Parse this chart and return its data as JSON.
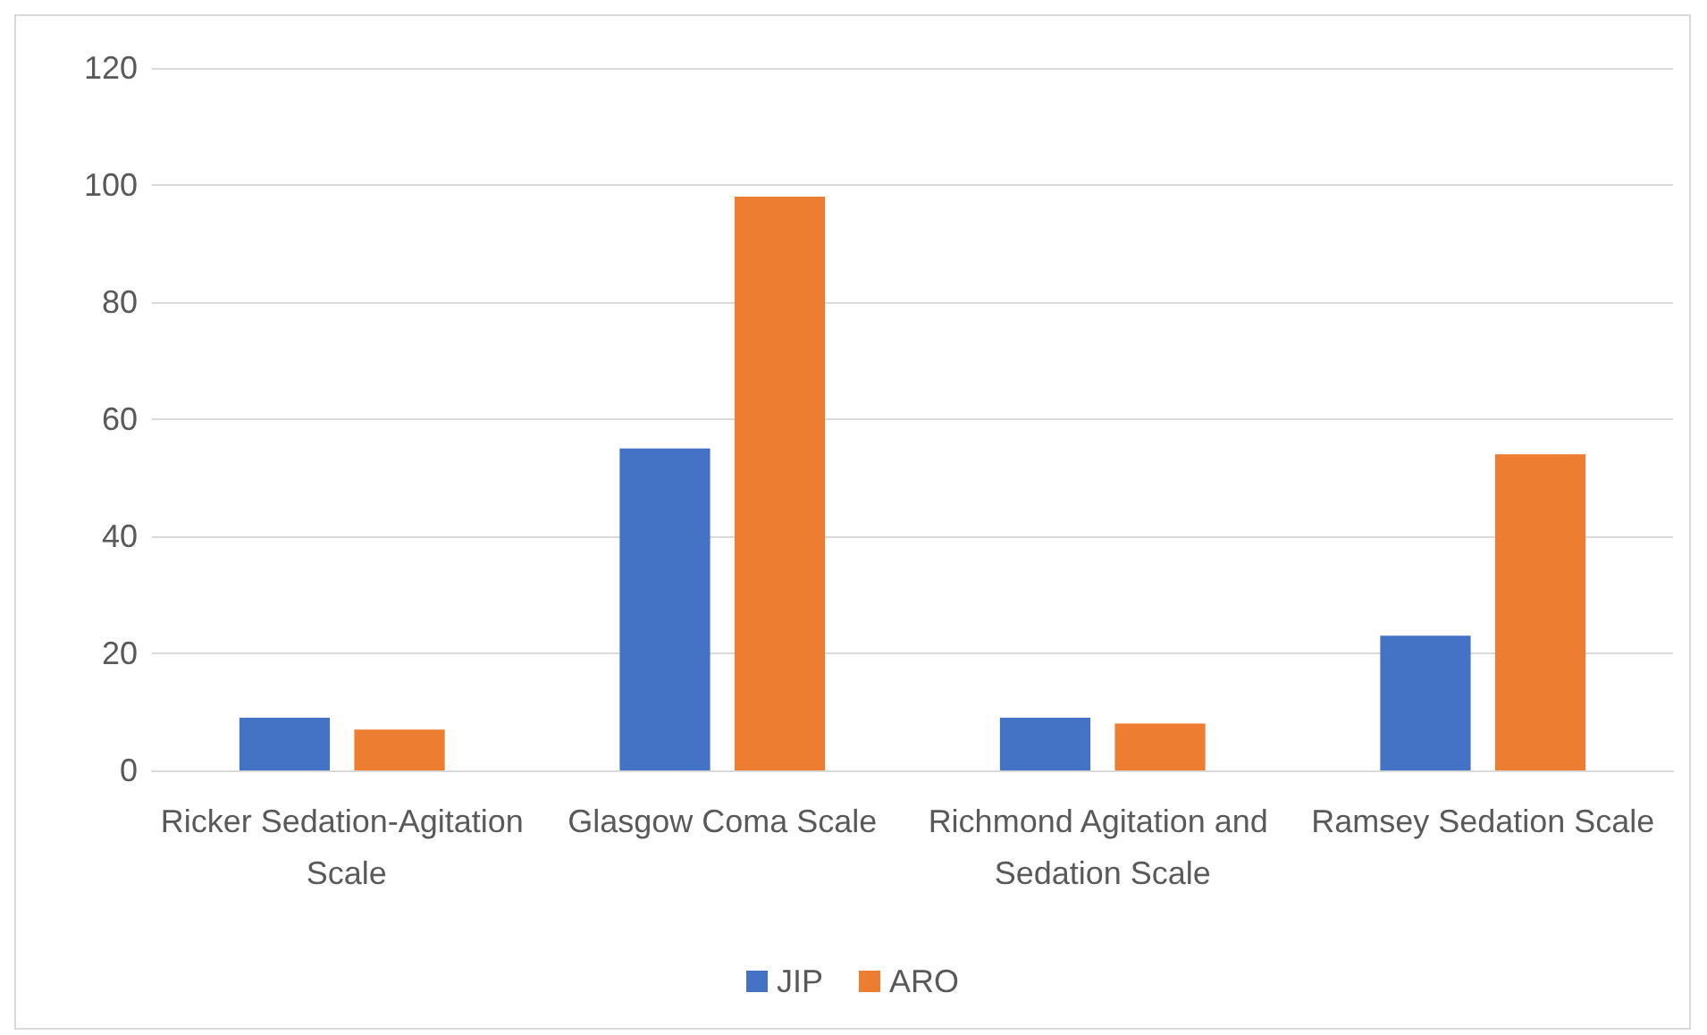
{
  "chart_data": {
    "type": "bar",
    "categories": [
      "Ricker Sedation-Agitation Scale",
      "Glasgow Coma Scale",
      "Richmond Agitation and Sedation Scale",
      "Ramsey Sedation Scale"
    ],
    "series": [
      {
        "name": "JIP",
        "color": "#4472c4",
        "values": [
          9,
          55,
          9,
          23
        ]
      },
      {
        "name": "ARO",
        "color": "#ed7d31",
        "values": [
          7,
          98,
          8,
          54
        ]
      }
    ],
    "ylim": [
      0,
      120
    ],
    "yticks": [
      0,
      20,
      40,
      60,
      80,
      100,
      120
    ],
    "grid": "y",
    "legend": "bottom"
  }
}
